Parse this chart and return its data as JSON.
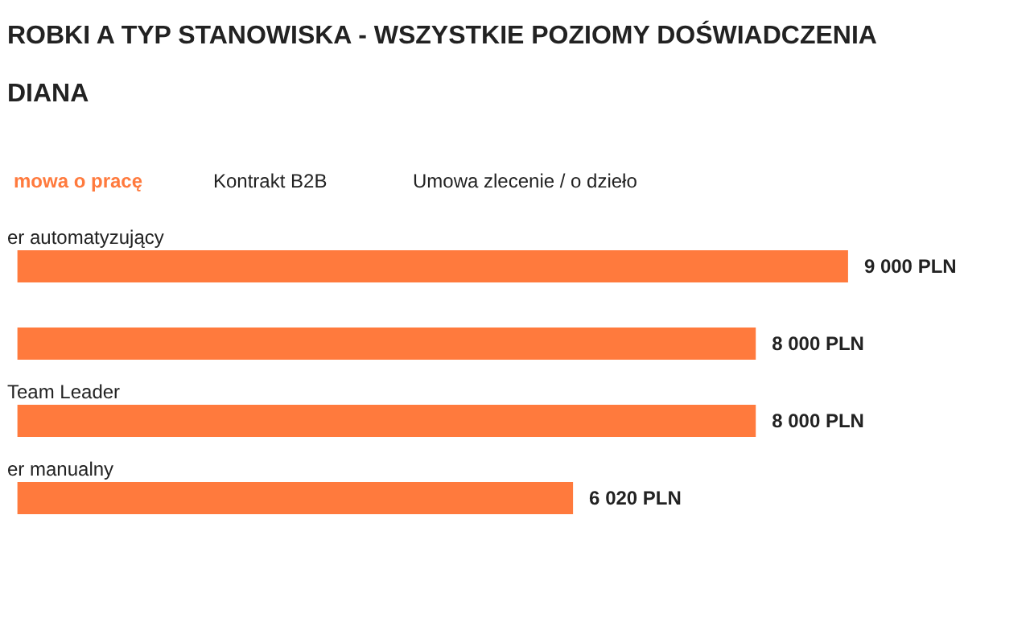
{
  "chart_data": {
    "type": "bar",
    "orientation": "horizontal",
    "title": "ROBKI A TYP STANOWISKA - WSZYSTKIE POZIOMY DOŚWIADCZENIA",
    "subtitle": "DIANA",
    "annotations": [
      "mowa o pracę",
      "Kontrakt B2B",
      "Umowa zlecenie / o dzieło"
    ],
    "categories": [
      "er automatyzujący",
      null,
      "Team Leader",
      "er manualny"
    ],
    "values": [
      9000,
      8000,
      8000,
      6020
    ],
    "value_labels": [
      "9 000 PLN",
      "8 000 PLN",
      "8 000 PLN",
      "6 020 PLN"
    ],
    "color": "#ff7a3d"
  }
}
